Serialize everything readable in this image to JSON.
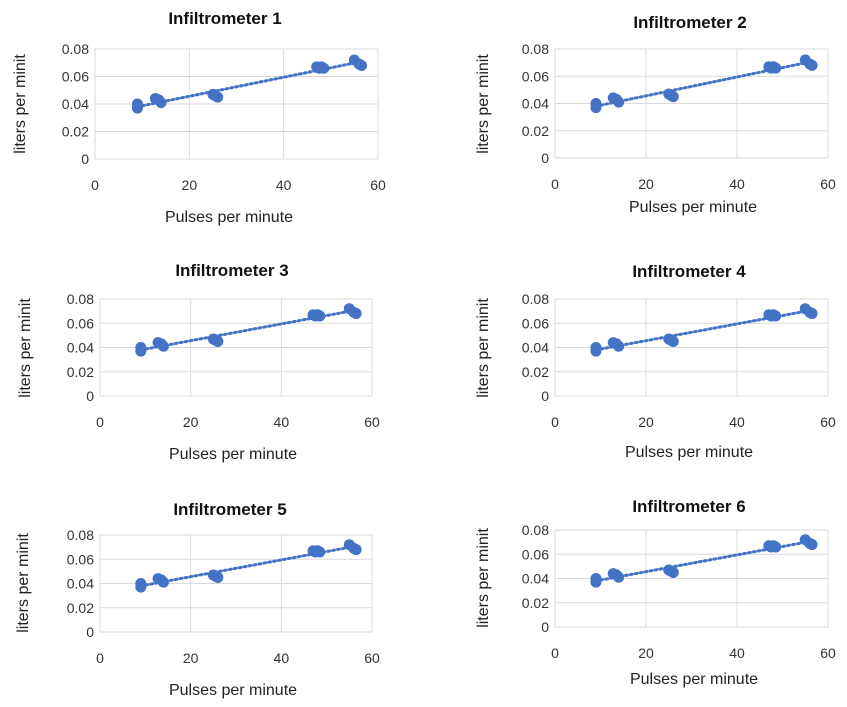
{
  "style": {
    "marker_color": "#4472C4",
    "trend_color": "#4472C4",
    "grid_color": "#D9D9D9"
  },
  "chart_data": [
    {
      "type": "scatter",
      "title": "Infiltrometer 1",
      "xlabel": "Pulses per minute",
      "ylabel": "liters per minit",
      "xlim": [
        0,
        60
      ],
      "ylim": [
        0,
        0.08
      ],
      "xticks": [
        "0",
        "20",
        "40",
        "60"
      ],
      "yticks": [
        "0",
        "0.02",
        "0.04",
        "0.06",
        "0.08"
      ],
      "grid": true,
      "legend": false,
      "trendline": "linear, dotted",
      "series": [
        {
          "x": [
            9,
            9,
            12.8,
            13.5,
            14,
            25,
            25.5,
            26,
            47,
            47.5,
            48,
            48.5,
            55,
            56,
            56.5
          ],
          "y": [
            0.04,
            0.037,
            0.044,
            0.043,
            0.041,
            0.047,
            0.046,
            0.045,
            0.067,
            0.066,
            0.067,
            0.066,
            0.072,
            0.069,
            0.068
          ]
        }
      ]
    },
    {
      "type": "scatter",
      "title": "Infiltrometer 2",
      "xlabel": "Pulses per minute",
      "ylabel": "liters per minit",
      "xlim": [
        0,
        60
      ],
      "ylim": [
        0,
        0.08
      ],
      "xticks": [
        "0",
        "20",
        "40",
        "60"
      ],
      "yticks": [
        "0",
        "0.02",
        "0.04",
        "0.06",
        "0.08"
      ],
      "grid": true,
      "legend": false,
      "trendline": "linear, dotted",
      "series": [
        {
          "x": [
            9,
            9,
            12.8,
            13.5,
            14,
            25,
            25.5,
            26,
            47,
            47.5,
            48,
            48.5,
            55,
            56,
            56.5
          ],
          "y": [
            0.04,
            0.037,
            0.044,
            0.043,
            0.041,
            0.047,
            0.046,
            0.045,
            0.067,
            0.066,
            0.067,
            0.066,
            0.072,
            0.069,
            0.068
          ]
        }
      ]
    },
    {
      "type": "scatter",
      "title": "Infiltrometer 3",
      "xlabel": "Pulses per minute",
      "ylabel": "liters per minit",
      "xlim": [
        0,
        60
      ],
      "ylim": [
        0,
        0.08
      ],
      "xticks": [
        "0",
        "20",
        "40",
        "60"
      ],
      "yticks": [
        "0",
        "0.02",
        "0.04",
        "0.06",
        "0.08"
      ],
      "grid": true,
      "legend": false,
      "trendline": "linear, dotted",
      "series": [
        {
          "x": [
            9,
            9,
            12.8,
            13.5,
            14,
            25,
            25.5,
            26,
            47,
            47.5,
            48,
            48.5,
            55,
            56,
            56.5
          ],
          "y": [
            0.04,
            0.037,
            0.044,
            0.043,
            0.041,
            0.047,
            0.046,
            0.045,
            0.067,
            0.066,
            0.067,
            0.066,
            0.072,
            0.069,
            0.068
          ]
        }
      ]
    },
    {
      "type": "scatter",
      "title": "Infiltrometer 4",
      "xlabel": "Pulses per minute",
      "ylabel": "liters per minit",
      "xlim": [
        0,
        60
      ],
      "ylim": [
        0,
        0.08
      ],
      "xticks": [
        "0",
        "20",
        "40",
        "60"
      ],
      "yticks": [
        "0",
        "0.02",
        "0.04",
        "0.06",
        "0.08"
      ],
      "grid": true,
      "legend": false,
      "trendline": "linear, dotted",
      "series": [
        {
          "x": [
            9,
            9,
            12.8,
            13.5,
            14,
            25,
            25.5,
            26,
            47,
            47.5,
            48,
            48.5,
            55,
            56,
            56.5
          ],
          "y": [
            0.04,
            0.037,
            0.044,
            0.043,
            0.041,
            0.047,
            0.046,
            0.045,
            0.067,
            0.066,
            0.067,
            0.066,
            0.072,
            0.069,
            0.068
          ]
        }
      ]
    },
    {
      "type": "scatter",
      "title": "Infiltrometer 5",
      "xlabel": "Pulses per minute",
      "ylabel": "liters per minit",
      "xlim": [
        0,
        60
      ],
      "ylim": [
        0,
        0.08
      ],
      "xticks": [
        "0",
        "20",
        "40",
        "60"
      ],
      "yticks": [
        "0",
        "0.02",
        "0.04",
        "0.06",
        "0.08"
      ],
      "grid": true,
      "legend": false,
      "trendline": "linear, dotted",
      "series": [
        {
          "x": [
            9,
            9,
            12.8,
            13.5,
            14,
            25,
            25.5,
            26,
            47,
            47.5,
            48,
            48.5,
            55,
            56,
            56.5
          ],
          "y": [
            0.04,
            0.037,
            0.044,
            0.043,
            0.041,
            0.047,
            0.046,
            0.045,
            0.067,
            0.066,
            0.067,
            0.066,
            0.072,
            0.069,
            0.068
          ]
        }
      ]
    },
    {
      "type": "scatter",
      "title": "Infiltrometer 6",
      "xlabel": "Pulses per minute",
      "ylabel": "liters per minit",
      "xlim": [
        0,
        60
      ],
      "ylim": [
        0,
        0.08
      ],
      "xticks": [
        "0",
        "20",
        "40",
        "60"
      ],
      "yticks": [
        "0",
        "0.02",
        "0.04",
        "0.06",
        "0.08"
      ],
      "grid": true,
      "legend": false,
      "trendline": "linear, dotted",
      "series": [
        {
          "x": [
            9,
            9,
            12.8,
            13.5,
            14,
            25,
            25.5,
            26,
            47,
            47.5,
            48,
            48.5,
            55,
            56,
            56.5
          ],
          "y": [
            0.04,
            0.037,
            0.044,
            0.043,
            0.041,
            0.047,
            0.046,
            0.045,
            0.067,
            0.066,
            0.067,
            0.066,
            0.072,
            0.069,
            0.068
          ]
        }
      ]
    }
  ]
}
